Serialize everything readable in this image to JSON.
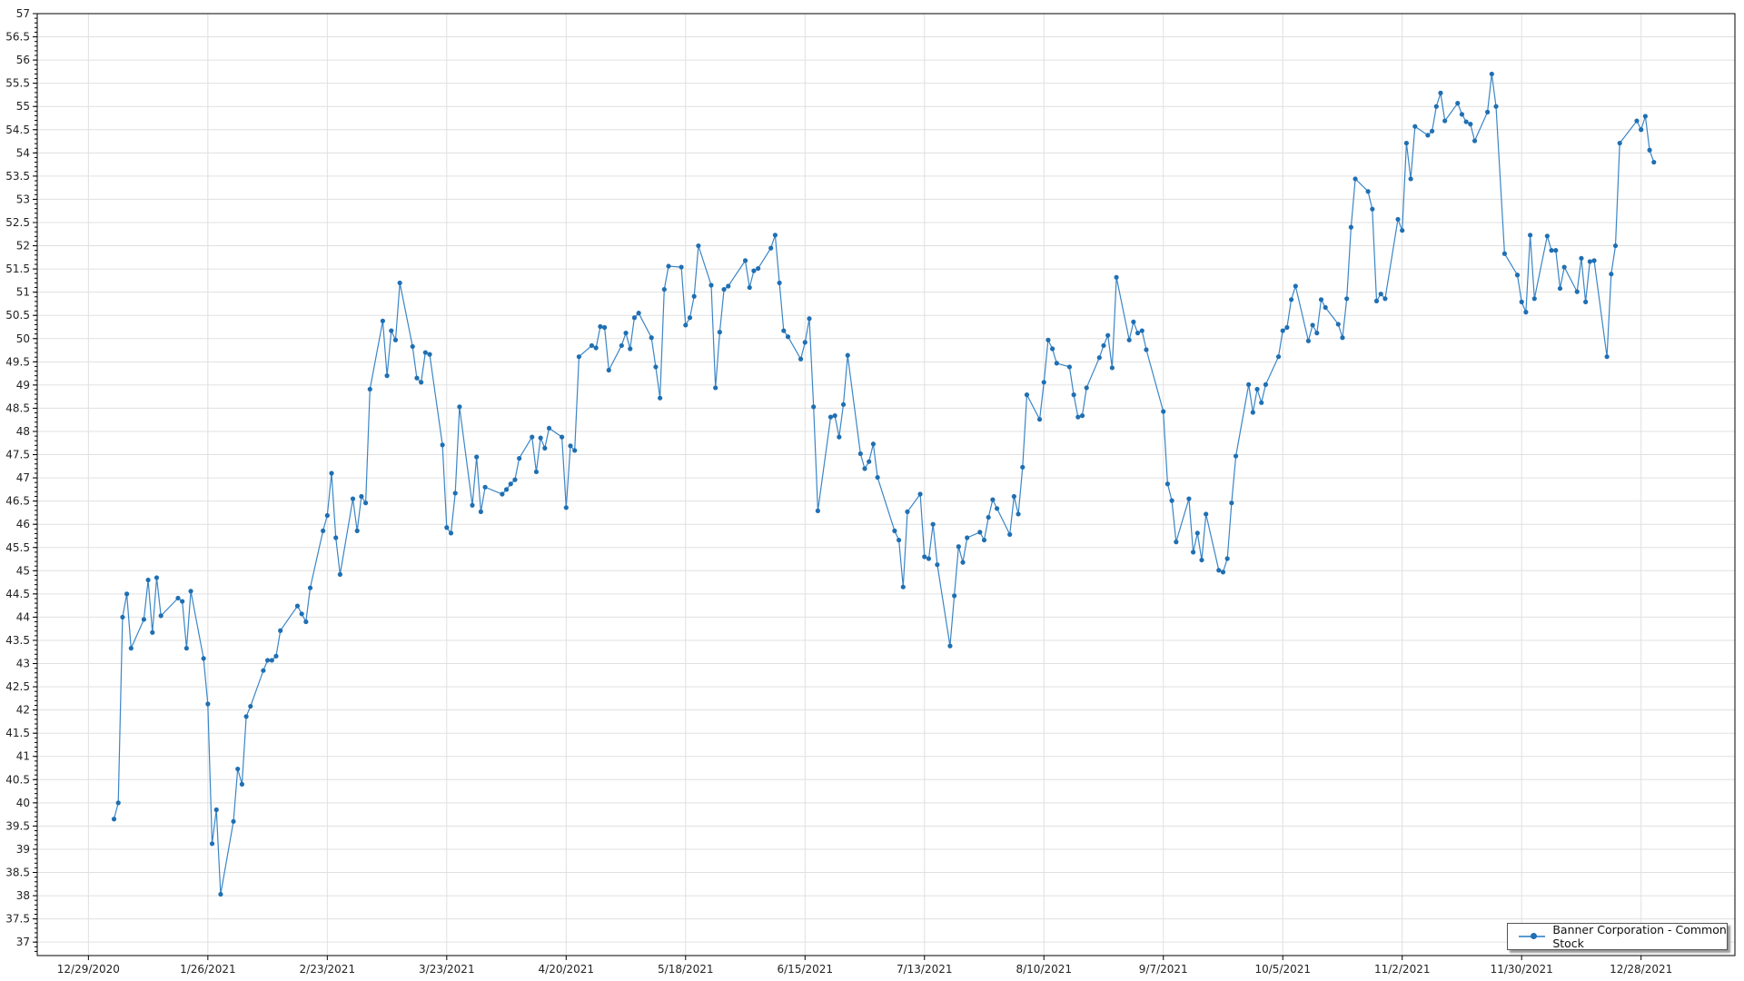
{
  "chart_data": {
    "type": "line",
    "title": "",
    "xlabel": "",
    "ylabel": "",
    "ylim": [
      36.71,
      57
    ],
    "yticks_step": 0.5,
    "xlim": [
      "2020-12-17",
      "2022-01-19"
    ],
    "grid": true,
    "legend_position": "bottom-right",
    "x_tick_labels": [
      "12/29/2020",
      "1/26/2021",
      "2/23/2021",
      "3/23/2021",
      "4/20/2021",
      "5/18/2021",
      "6/15/2021",
      "7/13/2021",
      "8/10/2021",
      "9/7/2021",
      "10/5/2021",
      "11/2/2021",
      "11/30/2021",
      "12/28/2021"
    ],
    "x_tick_dates": [
      "2020-12-29",
      "2021-01-26",
      "2021-02-23",
      "2021-03-23",
      "2021-04-20",
      "2021-05-18",
      "2021-06-15",
      "2021-07-13",
      "2021-08-10",
      "2021-09-07",
      "2021-10-05",
      "2021-11-02",
      "2021-11-30",
      "2021-12-28"
    ],
    "series": [
      {
        "name": "Banner Corporation - Common Stock",
        "color": "#1f6fb2",
        "x": [
          "2021-01-04",
          "2021-01-05",
          "2021-01-06",
          "2021-01-07",
          "2021-01-08",
          "2021-01-11",
          "2021-01-12",
          "2021-01-13",
          "2021-01-14",
          "2021-01-15",
          "2021-01-19",
          "2021-01-20",
          "2021-01-21",
          "2021-01-22",
          "2021-01-25",
          "2021-01-26",
          "2021-01-27",
          "2021-01-28",
          "2021-01-29",
          "2021-02-01",
          "2021-02-02",
          "2021-02-03",
          "2021-02-04",
          "2021-02-05",
          "2021-02-08",
          "2021-02-09",
          "2021-02-10",
          "2021-02-11",
          "2021-02-12",
          "2021-02-16",
          "2021-02-17",
          "2021-02-18",
          "2021-02-19",
          "2021-02-22",
          "2021-02-23",
          "2021-02-24",
          "2021-02-25",
          "2021-02-26",
          "2021-03-01",
          "2021-03-02",
          "2021-03-03",
          "2021-03-04",
          "2021-03-05",
          "2021-03-08",
          "2021-03-09",
          "2021-03-10",
          "2021-03-11",
          "2021-03-12",
          "2021-03-15",
          "2021-03-16",
          "2021-03-17",
          "2021-03-18",
          "2021-03-19",
          "2021-03-22",
          "2021-03-23",
          "2021-03-24",
          "2021-03-25",
          "2021-03-26",
          "2021-03-29",
          "2021-03-30",
          "2021-03-31",
          "2021-04-01",
          "2021-04-05",
          "2021-04-06",
          "2021-04-07",
          "2021-04-08",
          "2021-04-09",
          "2021-04-12",
          "2021-04-13",
          "2021-04-14",
          "2021-04-15",
          "2021-04-16",
          "2021-04-19",
          "2021-04-20",
          "2021-04-21",
          "2021-04-22",
          "2021-04-23",
          "2021-04-26",
          "2021-04-27",
          "2021-04-28",
          "2021-04-29",
          "2021-04-30",
          "2021-05-03",
          "2021-05-04",
          "2021-05-05",
          "2021-05-06",
          "2021-05-07",
          "2021-05-10",
          "2021-05-11",
          "2021-05-12",
          "2021-05-13",
          "2021-05-14",
          "2021-05-17",
          "2021-05-18",
          "2021-05-19",
          "2021-05-20",
          "2021-05-21",
          "2021-05-24",
          "2021-05-25",
          "2021-05-26",
          "2021-05-27",
          "2021-05-28",
          "2021-06-01",
          "2021-06-02",
          "2021-06-03",
          "2021-06-04",
          "2021-06-07",
          "2021-06-08",
          "2021-06-09",
          "2021-06-10",
          "2021-06-11",
          "2021-06-14",
          "2021-06-15",
          "2021-06-16",
          "2021-06-17",
          "2021-06-18",
          "2021-06-21",
          "2021-06-22",
          "2021-06-23",
          "2021-06-24",
          "2021-06-25",
          "2021-06-28",
          "2021-06-29",
          "2021-06-30",
          "2021-07-01",
          "2021-07-02",
          "2021-07-06",
          "2021-07-07",
          "2021-07-08",
          "2021-07-09",
          "2021-07-12",
          "2021-07-13",
          "2021-07-14",
          "2021-07-15",
          "2021-07-16",
          "2021-07-19",
          "2021-07-20",
          "2021-07-21",
          "2021-07-22",
          "2021-07-23",
          "2021-07-26",
          "2021-07-27",
          "2021-07-28",
          "2021-07-29",
          "2021-07-30",
          "2021-08-02",
          "2021-08-03",
          "2021-08-04",
          "2021-08-05",
          "2021-08-06",
          "2021-08-09",
          "2021-08-10",
          "2021-08-11",
          "2021-08-12",
          "2021-08-13",
          "2021-08-16",
          "2021-08-17",
          "2021-08-18",
          "2021-08-19",
          "2021-08-20",
          "2021-08-23",
          "2021-08-24",
          "2021-08-25",
          "2021-08-26",
          "2021-08-27",
          "2021-08-30",
          "2021-08-31",
          "2021-09-01",
          "2021-09-02",
          "2021-09-03",
          "2021-09-07",
          "2021-09-08",
          "2021-09-09",
          "2021-09-10",
          "2021-09-13",
          "2021-09-14",
          "2021-09-15",
          "2021-09-16",
          "2021-09-17",
          "2021-09-20",
          "2021-09-21",
          "2021-09-22",
          "2021-09-23",
          "2021-09-24",
          "2021-09-27",
          "2021-09-28",
          "2021-09-29",
          "2021-09-30",
          "2021-10-01",
          "2021-10-04",
          "2021-10-05",
          "2021-10-06",
          "2021-10-07",
          "2021-10-08",
          "2021-10-11",
          "2021-10-12",
          "2021-10-13",
          "2021-10-14",
          "2021-10-15",
          "2021-10-18",
          "2021-10-19",
          "2021-10-20",
          "2021-10-21",
          "2021-10-22",
          "2021-10-25",
          "2021-10-26",
          "2021-10-27",
          "2021-10-28",
          "2021-10-29",
          "2021-11-01",
          "2021-11-02",
          "2021-11-03",
          "2021-11-04",
          "2021-11-05",
          "2021-11-08",
          "2021-11-09",
          "2021-11-10",
          "2021-11-11",
          "2021-11-12",
          "2021-11-15",
          "2021-11-16",
          "2021-11-17",
          "2021-11-18",
          "2021-11-19",
          "2021-11-22",
          "2021-11-23",
          "2021-11-24",
          "2021-11-26",
          "2021-11-29",
          "2021-11-30",
          "2021-12-01",
          "2021-12-02",
          "2021-12-03",
          "2021-12-06",
          "2021-12-07",
          "2021-12-08",
          "2021-12-09",
          "2021-12-10",
          "2021-12-13",
          "2021-12-14",
          "2021-12-15",
          "2021-12-16",
          "2021-12-17",
          "2021-12-20",
          "2021-12-21",
          "2021-12-22",
          "2021-12-23",
          "2021-12-27",
          "2021-12-28",
          "2021-12-29",
          "2021-12-30",
          "2021-12-31"
        ],
        "y": [
          39.65,
          40.0,
          44.0,
          44.5,
          43.33,
          43.95,
          44.8,
          43.67,
          44.85,
          44.03,
          44.41,
          44.34,
          43.33,
          44.56,
          43.11,
          42.13,
          39.12,
          39.85,
          38.03,
          39.6,
          40.73,
          40.4,
          41.86,
          42.08,
          42.85,
          43.07,
          43.07,
          43.16,
          43.71,
          44.24,
          44.07,
          43.9,
          44.63,
          45.86,
          46.19,
          47.1,
          45.71,
          44.92,
          46.55,
          45.86,
          46.6,
          46.46,
          48.91,
          50.38,
          49.2,
          50.17,
          49.97,
          51.2,
          49.83,
          49.15,
          49.06,
          49.7,
          49.66,
          47.71,
          45.93,
          45.81,
          46.67,
          48.53,
          46.41,
          47.45,
          46.27,
          46.8,
          46.65,
          46.75,
          46.87,
          46.96,
          47.42,
          47.88,
          47.13,
          47.86,
          47.64,
          48.07,
          47.88,
          46.36,
          47.69,
          47.59,
          49.61,
          49.85,
          49.8,
          50.26,
          50.24,
          49.32,
          49.85,
          50.12,
          49.78,
          50.45,
          50.55,
          50.02,
          49.39,
          48.72,
          51.06,
          51.56,
          51.54,
          50.29,
          50.45,
          50.91,
          52.0,
          51.15,
          48.94,
          50.14,
          51.06,
          51.13,
          51.68,
          51.1,
          51.46,
          51.51,
          51.95,
          52.23,
          51.2,
          50.17,
          50.04,
          49.56,
          49.92,
          50.43,
          48.53,
          46.29,
          48.31,
          48.34,
          47.88,
          48.58,
          49.64,
          47.52,
          47.2,
          47.35,
          47.73,
          47.01,
          45.86,
          45.66,
          44.65,
          46.27,
          46.65,
          45.3,
          45.26,
          46.0,
          45.13,
          43.38,
          44.46,
          45.52,
          45.18,
          45.71,
          45.83,
          45.66,
          46.15,
          46.53,
          46.34,
          45.78,
          46.6,
          46.22,
          47.23,
          48.79,
          48.26,
          49.06,
          49.97,
          49.78,
          49.47,
          49.39,
          48.79,
          48.31,
          48.34,
          48.94,
          49.59,
          49.85,
          50.07,
          49.37,
          51.32,
          49.97,
          50.36,
          50.12,
          50.17,
          49.76,
          48.43,
          46.87,
          46.51,
          45.62,
          46.55,
          45.4,
          45.81,
          45.23,
          46.22,
          45.01,
          44.97,
          45.26,
          46.46,
          47.47,
          49.01,
          48.41,
          48.91,
          48.62,
          49.01,
          49.61,
          50.17,
          50.24,
          50.84,
          51.13,
          49.95,
          50.29,
          50.12,
          50.84,
          50.67,
          50.31,
          50.02,
          50.86,
          52.4,
          53.44,
          53.17,
          52.79,
          50.81,
          50.96,
          50.86,
          52.57,
          52.33,
          54.21,
          53.44,
          54.57,
          54.38,
          54.47,
          55.0,
          55.29,
          54.69,
          55.07,
          54.83,
          54.67,
          54.62,
          54.26,
          54.88,
          55.7,
          55.0,
          51.83,
          51.37,
          50.79,
          50.57,
          52.23,
          50.86,
          52.21,
          51.9,
          51.9,
          51.08,
          51.54,
          51.01,
          51.73,
          50.79,
          51.66,
          51.68,
          49.61,
          51.39,
          52.0,
          54.21,
          54.69,
          54.5,
          54.79,
          54.06,
          53.8
        ]
      }
    ]
  }
}
